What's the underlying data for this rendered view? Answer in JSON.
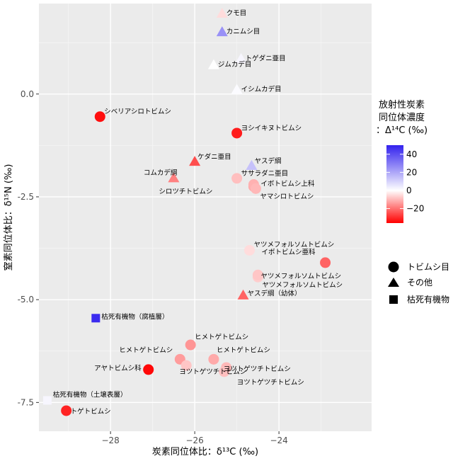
{
  "chart_data": {
    "type": "scatter",
    "xlabel": "炭素同位体比：δ¹³C (‰)",
    "ylabel": "窒素同位体比：δ¹⁵N (‰)",
    "xlim": [
      -29.7,
      -21.8
    ],
    "ylim": [
      -8.2,
      2.2
    ],
    "x_ticks": [
      -28,
      -26,
      -24
    ],
    "y_ticks": [
      0.0,
      -2.5,
      -5.0,
      -7.5
    ],
    "x_tick_labels": [
      "−28",
      "−26",
      "−24"
    ],
    "y_tick_labels": [
      "0.0",
      "-2.5",
      "-5.0",
      "-7.5"
    ],
    "grid": true,
    "color_legend": {
      "title_line1": "放射性炭素",
      "title_line2": "同位体濃度",
      "title_line3": "：Δ¹⁴C (‰)",
      "ticks": [
        40,
        20,
        0,
        -20
      ],
      "tick_labels": [
        "40",
        "20",
        "0",
        "−20"
      ],
      "range": [
        -36,
        50
      ],
      "low_color": "#ff0000",
      "mid_color": "#ffffff",
      "high_color": "#3322ee"
    },
    "shape_legend": [
      {
        "shape": "circle",
        "label": "トビムシ目"
      },
      {
        "shape": "triangle",
        "label": "その他"
      },
      {
        "shape": "square",
        "label": "枯死有機物"
      }
    ],
    "points": [
      {
        "label": "クモ目",
        "x": -25.35,
        "y": 1.95,
        "shape": "triangle",
        "c14": -5
      },
      {
        "label": "カニムシ目",
        "x": -25.35,
        "y": 1.5,
        "shape": "triangle",
        "c14": 25
      },
      {
        "label": "トゲダニ亜目",
        "x": -24.9,
        "y": 0.85,
        "shape": "triangle",
        "c14": 2
      },
      {
        "label": "ジムカデ目",
        "x": -25.55,
        "y": 0.7,
        "shape": "triangle",
        "c14": 0
      },
      {
        "label": "イシムカデ目",
        "x": -25.0,
        "y": 0.1,
        "shape": "triangle",
        "c14": 1
      },
      {
        "label": "シベリアシロトビムシ",
        "x": -28.25,
        "y": -0.55,
        "shape": "circle",
        "c14": -34
      },
      {
        "label": "ヨシイキヌトビムシ",
        "x": -25.0,
        "y": -0.95,
        "shape": "circle",
        "c14": -32
      },
      {
        "label": "ケダニ亜目",
        "x": -26.0,
        "y": -1.65,
        "shape": "triangle",
        "c14": -25
      },
      {
        "label": "ヤスデ綱",
        "x": -24.65,
        "y": -1.75,
        "shape": "triangle",
        "c14": 14
      },
      {
        "label": "コムカデ綱",
        "x": -26.5,
        "y": -2.05,
        "shape": "triangle",
        "c14": -18
      },
      {
        "label": "ササラダニ亜目",
        "x": -25.0,
        "y": -2.05,
        "shape": "circle",
        "c14": -9
      },
      {
        "label": "シロツチトビムシ",
        "x": -24.6,
        "y": -2.25,
        "shape": "circle",
        "c14": -12
      },
      {
        "label": "イボトビムシ上科",
        "x": -24.6,
        "y": -2.2,
        "shape": "circle",
        "c14": -11
      },
      {
        "label": "ヤマシロトビムシ",
        "x": -24.55,
        "y": -2.3,
        "shape": "circle",
        "c14": -10
      },
      {
        "label": "ヤツメフォルソムトビムシ",
        "x": -24.7,
        "y": -3.8,
        "shape": "circle",
        "c14": -5
      },
      {
        "label": "イボトビムシ亜科",
        "x": -22.9,
        "y": -4.1,
        "shape": "circle",
        "c14": -22
      },
      {
        "label": "ヤツメフォルソムトビムシ",
        "x": -24.5,
        "y": -4.45,
        "shape": "circle",
        "c14": -7
      },
      {
        "label": "ヤツメフォルソムトビムシ",
        "x": -24.5,
        "y": -4.4,
        "shape": "circle",
        "c14": -8
      },
      {
        "label": "ヤスデ綱（幼体）",
        "x": -24.85,
        "y": -4.9,
        "shape": "triangle",
        "c14": -22
      },
      {
        "label": "枯死有機物（腐植層）",
        "x": -28.35,
        "y": -5.45,
        "shape": "square",
        "c14": 48
      },
      {
        "label": "ヒメトゲトビムシ",
        "x": -26.1,
        "y": -6.1,
        "shape": "circle",
        "c14": -15
      },
      {
        "label": "ヒメトゲトビムシ",
        "x": -26.35,
        "y": -6.45,
        "shape": "circle",
        "c14": -14
      },
      {
        "label": "ヒメトゲトビムシ",
        "x": -25.55,
        "y": -6.45,
        "shape": "circle",
        "c14": -12
      },
      {
        "label": "アヤトビムシ科",
        "x": -27.1,
        "y": -6.7,
        "shape": "circle",
        "c14": -35
      },
      {
        "label": "ヨツトゲツチトビムシ",
        "x": -26.2,
        "y": -6.6,
        "shape": "circle",
        "c14": -8
      },
      {
        "label": "ヨツトゲツチトビムシ",
        "x": -25.25,
        "y": -6.65,
        "shape": "circle",
        "c14": -10
      },
      {
        "label": "ヨツトゲツチトビムシ",
        "x": -25.3,
        "y": -6.75,
        "shape": "circle",
        "c14": -9
      },
      {
        "label": "枯死有機物（土壌表層）",
        "x": -29.5,
        "y": -7.45,
        "shape": "square",
        "c14": 2
      },
      {
        "label": "トゲトビムシ",
        "x": -29.05,
        "y": -7.7,
        "shape": "circle",
        "c14": -31
      }
    ]
  }
}
